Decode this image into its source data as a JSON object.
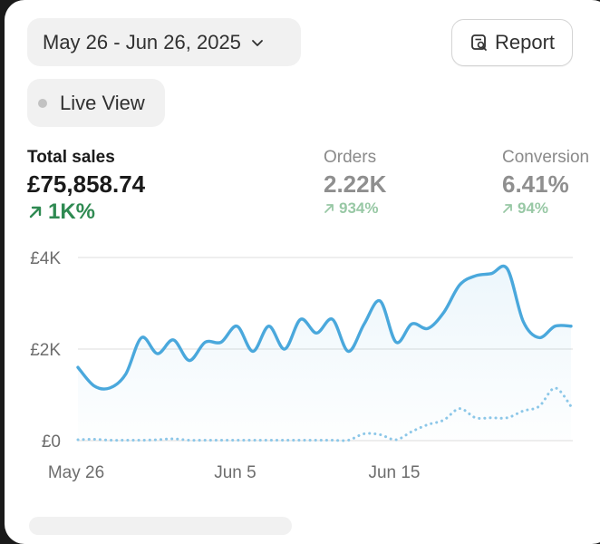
{
  "date_range": {
    "label": "May 26 - Jun 26, 2025"
  },
  "report_button": {
    "label": "Report"
  },
  "live_view": {
    "label": "Live View"
  },
  "metrics": [
    {
      "label": "Total sales",
      "value": "£75,858.74",
      "delta": "1K%"
    },
    {
      "label": "Orders",
      "value": "2.22K",
      "delta": "934%"
    },
    {
      "label": "Conversion",
      "value": "6.41%",
      "delta": "94%"
    }
  ],
  "colors": {
    "line": "#4aa8dc",
    "comparison": "#8cc7e8",
    "positive": "#2f8a52",
    "positive_muted": "#98c8a5"
  },
  "chart_data": {
    "type": "line",
    "y_tick_labels": [
      "£0",
      "£2K",
      "£4K"
    ],
    "y_ticks": [
      0,
      2000,
      4000
    ],
    "ylim": [
      0,
      4000
    ],
    "x_tick_labels": [
      "May 26",
      "Jun 5",
      "Jun 15"
    ],
    "x_tick_indices": [
      0,
      10,
      20
    ],
    "grid": true,
    "series": [
      {
        "values": [
          1600,
          1200,
          1150,
          1450,
          2250,
          1900,
          2200,
          1750,
          2150,
          2150,
          2500,
          1950,
          2500,
          2000,
          2650,
          2350,
          2650,
          1950,
          2550,
          3050,
          2150,
          2550,
          2450,
          2800,
          3400,
          3600,
          3650,
          3750,
          2600,
          2250,
          2500,
          2500
        ],
        "area": true
      },
      {
        "values": [
          20,
          30,
          10,
          10,
          10,
          20,
          40,
          10,
          10,
          10,
          10,
          10,
          10,
          10,
          10,
          10,
          10,
          10,
          150,
          130,
          20,
          200,
          350,
          450,
          700,
          500,
          500,
          500,
          650,
          750,
          1150,
          750
        ],
        "dotted": true
      }
    ]
  }
}
